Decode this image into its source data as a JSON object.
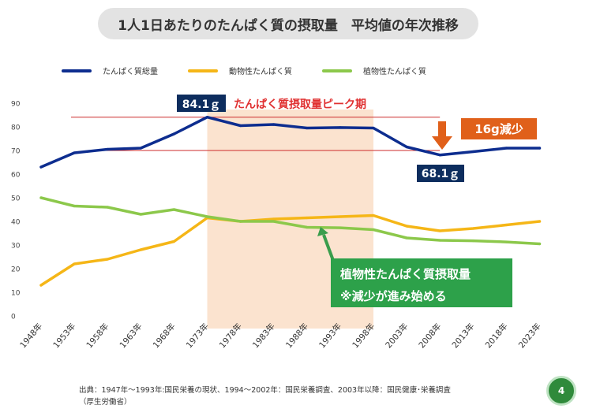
{
  "page_title": "1人1日あたりのたんぱく質の摂取量　平均値の年次推移",
  "source_line1": "出典：1947年～1993年:国民栄養の現状、1994～2002年：国民栄養調査、2003年以降：国民健康･栄養調査",
  "source_line2": "（厚生労働省）",
  "page_number": "4",
  "chart_data": {
    "type": "line",
    "title": "",
    "xlabel": "",
    "ylabel": "",
    "ylim": [
      0,
      90
    ],
    "yticks": [
      0,
      10,
      20,
      30,
      40,
      50,
      60,
      70,
      80,
      90
    ],
    "grid": false,
    "legend_position": "top-left",
    "categories": [
      "1948年",
      "1953年",
      "1958年",
      "1963年",
      "1968年",
      "1973年",
      "1978年",
      "1983年",
      "1988年",
      "1993年",
      "1998年",
      "2003年",
      "2008年",
      "2013年",
      "2018年",
      "2023年"
    ],
    "x_years": [
      1948,
      1953,
      1958,
      1963,
      1968,
      1973,
      1978,
      1983,
      1988,
      1993,
      1998,
      2003,
      2008,
      2013,
      2018,
      2023
    ],
    "series": [
      {
        "name": "たんぱく質総量",
        "color": "#0d2d8f",
        "x": [
          1948,
          1953,
          1958,
          1963,
          1968,
          1973,
          1978,
          1983,
          1988,
          1993,
          1998,
          2003,
          2008,
          2013,
          2018,
          2023
        ],
        "values": [
          63.0,
          69.0,
          70.5,
          71.0,
          77.0,
          84.1,
          80.5,
          81.0,
          79.5,
          79.7,
          79.5,
          71.5,
          68.1,
          69.5,
          71.0,
          71.0
        ]
      },
      {
        "name": "動物性たんぱく質",
        "color": "#f5b617",
        "x": [
          1948,
          1953,
          1958,
          1963,
          1968,
          1973,
          1978,
          1983,
          1988,
          1993,
          1998,
          2003,
          2008,
          2013,
          2018,
          2023
        ],
        "values": [
          13.0,
          22.0,
          24.0,
          28.0,
          31.5,
          41.5,
          40.0,
          41.0,
          41.5,
          42.0,
          42.5,
          38.0,
          36.0,
          37.0,
          38.5,
          40.0
        ]
      },
      {
        "name": "植物性たんぱく質",
        "color": "#8cc84b",
        "x": [
          1948,
          1953,
          1958,
          1963,
          1968,
          1973,
          1978,
          1983,
          1988,
          1993,
          1998,
          2003,
          2008,
          2013,
          2018,
          2023
        ],
        "values": [
          50.0,
          46.5,
          46.0,
          43.0,
          45.0,
          42.0,
          40.0,
          40.0,
          37.5,
          37.3,
          36.5,
          33.0,
          32.0,
          31.8,
          31.3,
          30.5
        ]
      }
    ],
    "highlight_band": {
      "from": 1973,
      "to": 1998,
      "color": "#fbe3cf"
    },
    "reference_lines": [
      {
        "value": 84.1,
        "from": 1948,
        "to": 2008,
        "color": "#cc2b2b"
      },
      {
        "value": 70.0,
        "from": 1953,
        "to": 2008,
        "color": "#cc2b2b"
      }
    ],
    "annotations": {
      "peak_value": "84.1ｇ",
      "peak_label": "たんぱく質摂取量ピーク期",
      "low_value": "68.1ｇ",
      "decrease_label": "16g減少",
      "plant_note_line1": "植物性たんぱく質摂取量",
      "plant_note_line2": "※減少が進み始める"
    }
  }
}
